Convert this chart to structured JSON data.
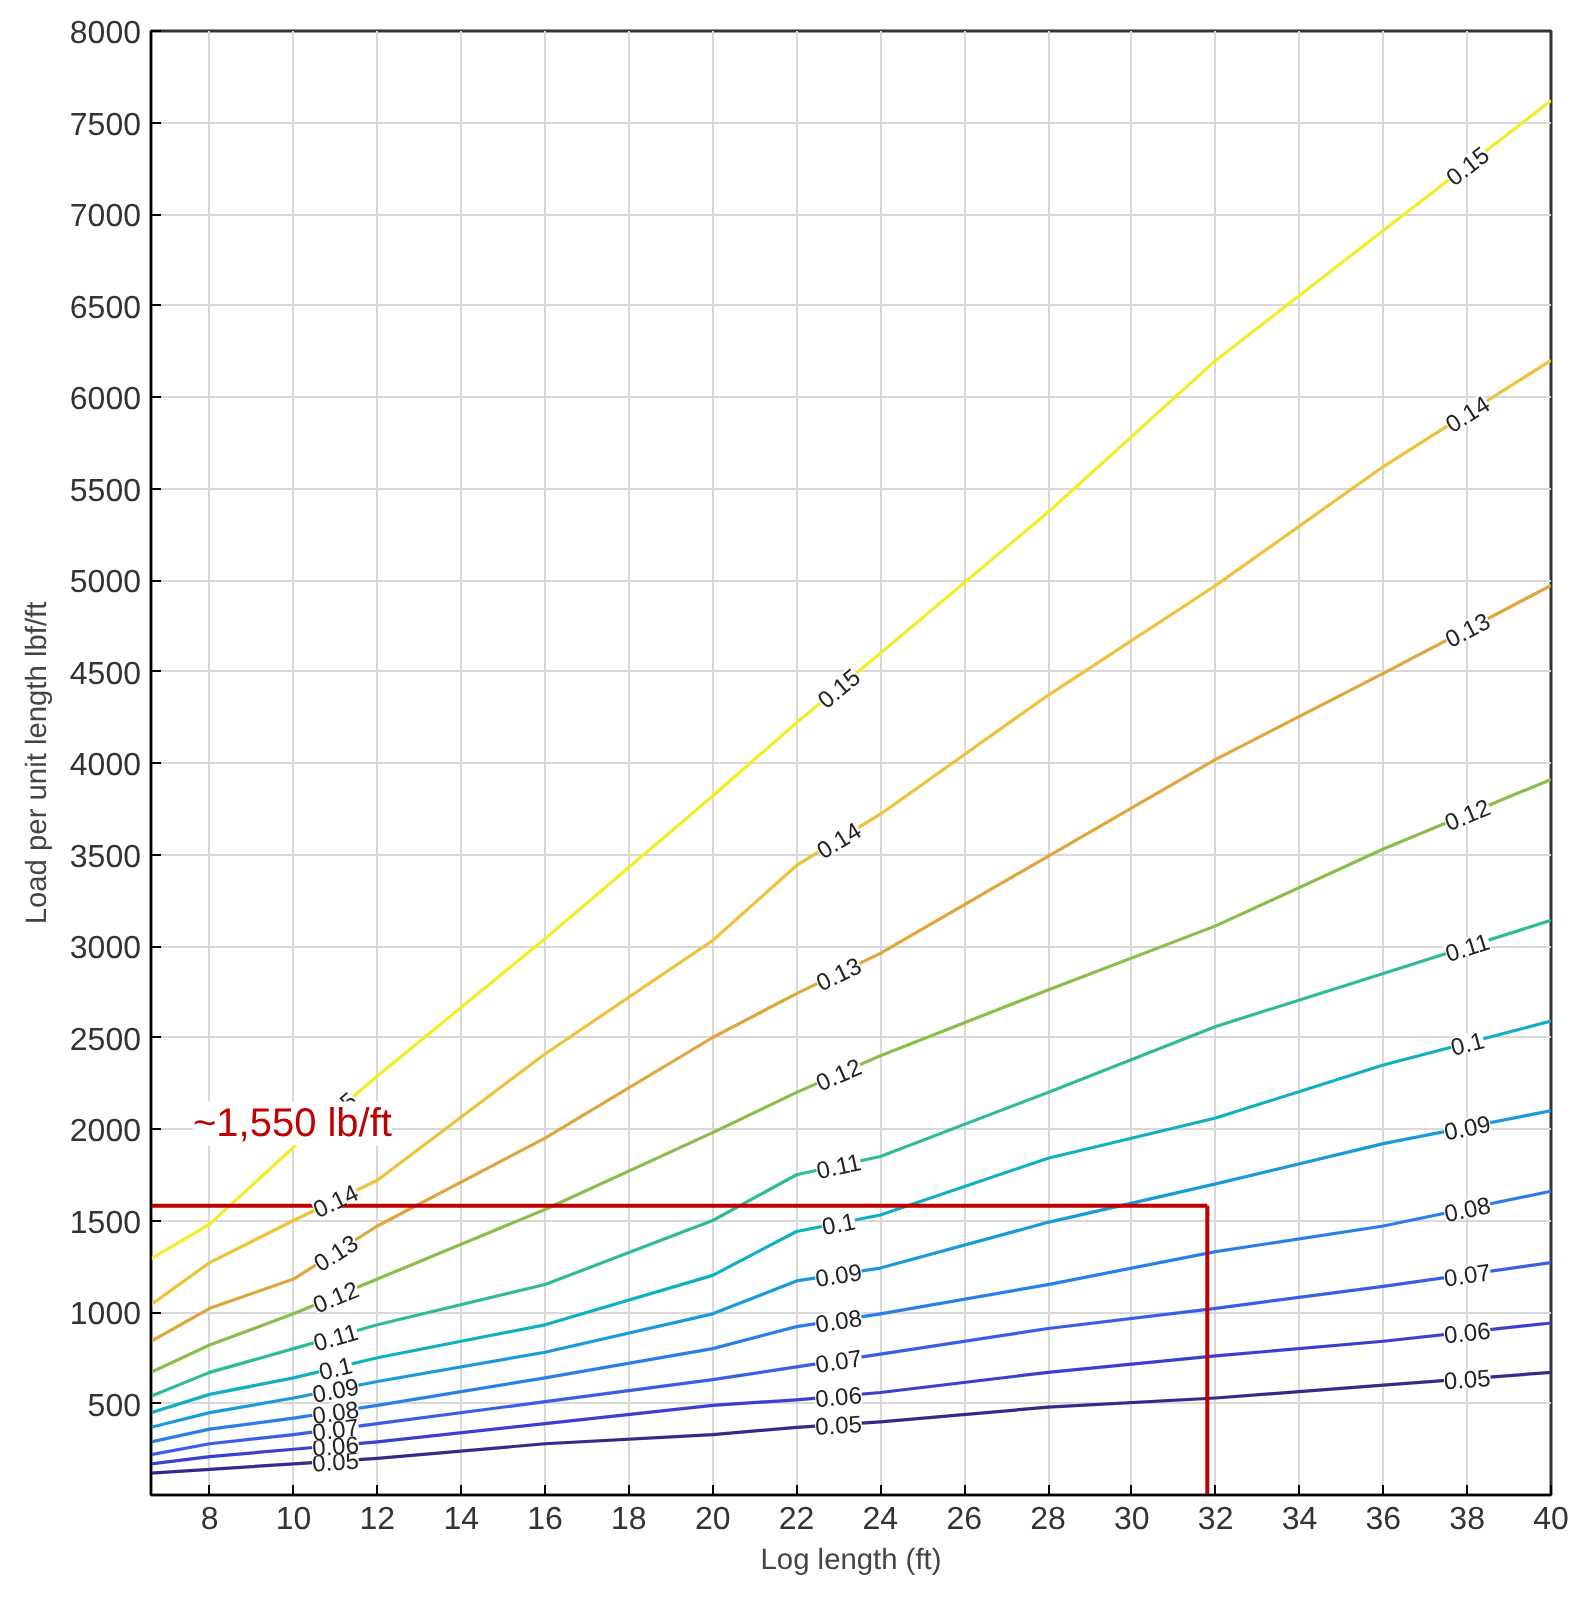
{
  "chart_data": {
    "type": "line",
    "xlabel": "Log length (ft)",
    "ylabel": "Load per unit length lbf/ft",
    "x": [
      6.6,
      8,
      10,
      12,
      16,
      20,
      22,
      24,
      28,
      32,
      36,
      40
    ],
    "series": [
      {
        "name": "0.05",
        "color": "#352a87",
        "values": [
          120,
          140,
          170,
          200,
          280,
          330,
          370,
          400,
          480,
          530,
          600,
          670
        ]
      },
      {
        "name": "0.06",
        "color": "#3b3fd0",
        "values": [
          170,
          210,
          250,
          290,
          390,
          490,
          520,
          560,
          670,
          760,
          840,
          940
        ]
      },
      {
        "name": "0.07",
        "color": "#3a5de6",
        "values": [
          220,
          280,
          330,
          390,
          510,
          630,
          700,
          770,
          910,
          1020,
          1140,
          1270
        ]
      },
      {
        "name": "0.08",
        "color": "#2b7eea",
        "values": [
          290,
          360,
          420,
          490,
          640,
          800,
          920,
          990,
          1150,
          1330,
          1470,
          1660
        ]
      },
      {
        "name": "0.09",
        "color": "#1a9ad8",
        "values": [
          370,
          450,
          530,
          620,
          780,
          990,
          1170,
          1240,
          1490,
          1700,
          1920,
          2100
        ]
      },
      {
        "name": "0.1",
        "color": "#0fb0c0",
        "values": [
          450,
          550,
          640,
          750,
          930,
          1200,
          1440,
          1530,
          1840,
          2060,
          2350,
          2590
        ]
      },
      {
        "name": "0.11",
        "color": "#2fbb98",
        "values": [
          540,
          670,
          800,
          930,
          1150,
          1500,
          1750,
          1850,
          2200,
          2560,
          2850,
          3140
        ]
      },
      {
        "name": "0.12",
        "color": "#8bbd4c",
        "values": [
          670,
          820,
          990,
          1180,
          1560,
          1980,
          2200,
          2400,
          2760,
          3110,
          3530,
          3910
        ]
      },
      {
        "name": "0.13",
        "color": "#dfa63c",
        "values": [
          840,
          1020,
          1180,
          1470,
          1950,
          2500,
          2740,
          2960,
          3490,
          4020,
          4490,
          4970
        ]
      },
      {
        "name": "0.14",
        "color": "#eec23a",
        "values": [
          1040,
          1270,
          1500,
          1720,
          2410,
          3030,
          3440,
          3720,
          4370,
          4970,
          5620,
          6200
        ]
      },
      {
        "name": "0.15",
        "color": "#f2ee26",
        "values": [
          1290,
          1480,
          1900,
          2290,
          3040,
          3820,
          4220,
          4600,
          5370,
          6200,
          6910,
          7620
        ]
      }
    ],
    "xlim": [
      6.6,
      40
    ],
    "ylim": [
      0,
      8000
    ],
    "xticks": [
      8,
      10,
      12,
      14,
      16,
      18,
      20,
      22,
      24,
      26,
      28,
      30,
      32,
      34,
      36,
      38,
      40
    ],
    "yticks": [
      500,
      1000,
      1500,
      2000,
      2500,
      3000,
      3500,
      4000,
      4500,
      5000,
      5500,
      6000,
      6500,
      7000,
      7500,
      8000
    ],
    "grid": true,
    "marker": "none",
    "line_style": "solid",
    "ref_lines": [
      {
        "axis": "y",
        "value": 1580,
        "label": "~1,550 lb/ft",
        "color": "#c00000"
      },
      {
        "axis": "x",
        "value": 31.8,
        "color": "#c00000"
      }
    ]
  }
}
